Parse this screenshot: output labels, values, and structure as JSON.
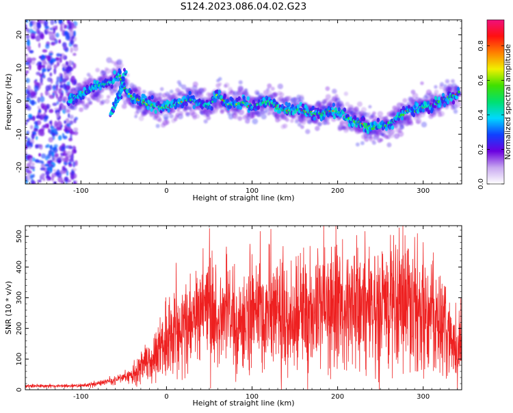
{
  "title": "S124.2023.086.04.02.G23",
  "chart_data": [
    {
      "type": "heatmap",
      "title": "",
      "xlabel": "Height of straight line (km)",
      "ylabel": "Frequency (Hz)",
      "xlim": [
        -165,
        345
      ],
      "ylim": [
        -25,
        24.5
      ],
      "xticks": [
        -100,
        0,
        100,
        200,
        300
      ],
      "yticks": [
        -20,
        -10,
        0,
        10,
        20
      ],
      "colorbar": {
        "label": "Normalized spectral amplitude",
        "range": [
          0,
          0.95
        ],
        "ticks": [
          0.0,
          0.2,
          0.4,
          0.6,
          0.8
        ],
        "colors": [
          "#ffffff",
          "#c8a8f0",
          "#6a00e0",
          "#1040ff",
          "#00d8ff",
          "#00e070",
          "#40e000",
          "#f0f000",
          "#ff8000",
          "#ff1010",
          "#f0107c"
        ]
      },
      "ridge": {
        "x": [
          -115,
          -95,
          -85,
          -75,
          -65,
          -55,
          -50,
          -40,
          -30,
          -20,
          -10,
          0,
          10,
          20,
          30,
          40,
          50,
          60,
          70,
          80,
          90,
          100,
          110,
          120,
          130,
          140,
          150,
          160,
          170,
          180,
          190,
          200,
          210,
          220,
          230,
          240,
          250,
          260,
          270,
          280,
          290,
          300,
          310,
          320,
          330,
          342
        ],
        "y": [
          0,
          3,
          4,
          5,
          6,
          8,
          4,
          1,
          0,
          -1,
          -1.5,
          -2,
          -1,
          0,
          0.5,
          -1,
          -1,
          2,
          -1,
          -1,
          -0.5,
          -2,
          -1,
          0,
          -2,
          -3,
          -2,
          -3,
          -4,
          -4,
          -3,
          -3,
          -5,
          -6,
          -7,
          -8,
          -8,
          -7,
          -5,
          -3,
          -3,
          -2,
          -1,
          0,
          1,
          2.5
        ]
      },
      "branch": {
        "x": [
          -65,
          -60,
          -55,
          -50,
          -48
        ],
        "y": [
          -4,
          -1,
          2,
          6,
          10
        ]
      }
    },
    {
      "type": "line",
      "title": "",
      "xlabel": "Height of straight line (km)",
      "ylabel": "SNR (10 * v/v)",
      "xlim": [
        -165,
        345
      ],
      "ylim": [
        0,
        535
      ],
      "xticks": [
        -100,
        0,
        100,
        200,
        300
      ],
      "yticks": [
        0,
        100,
        200,
        300,
        400,
        500
      ],
      "series": [
        {
          "color": "#ee2020",
          "x": [
            -165,
            -140,
            -120,
            -100,
            -80,
            -70,
            -60,
            -50,
            -40,
            -30,
            -20,
            -10,
            0,
            10,
            20,
            30,
            40,
            50,
            60,
            80,
            100,
            120,
            140,
            160,
            180,
            200,
            220,
            240,
            260,
            280,
            300,
            310,
            320,
            330,
            335,
            340,
            345
          ],
          "y": [
            12,
            12,
            12,
            14,
            20,
            25,
            30,
            40,
            50,
            70,
            100,
            130,
            160,
            190,
            210,
            225,
            235,
            240,
            245,
            245,
            245,
            245,
            250,
            260,
            260,
            270,
            275,
            280,
            275,
            275,
            270,
            260,
            250,
            230,
            150,
            100,
            140
          ]
        }
      ]
    }
  ]
}
